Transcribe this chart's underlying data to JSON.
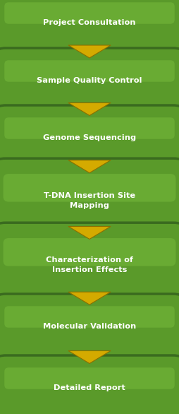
{
  "steps": [
    "Project Consultation",
    "Sample Quality Control",
    "Genome Sequencing",
    "T-DNA Insertion Site\nMapping",
    "Characterization of\nInsertion Effects",
    "Molecular Validation",
    "Detailed Report"
  ],
  "box_border_color": "#3a6b1f",
  "box_fill_color": "#5a9a2a",
  "box_highlight_color": "#7dc040",
  "box_shadow_color": "#2d5518",
  "text_color": "#ffffff",
  "arrow_fill": "#d4aa00",
  "arrow_edge": "#8a7000",
  "bg_color": "#f0f0f0",
  "fig_width": 2.54,
  "fig_height": 5.86,
  "dpi": 100,
  "font_size": 8.2
}
